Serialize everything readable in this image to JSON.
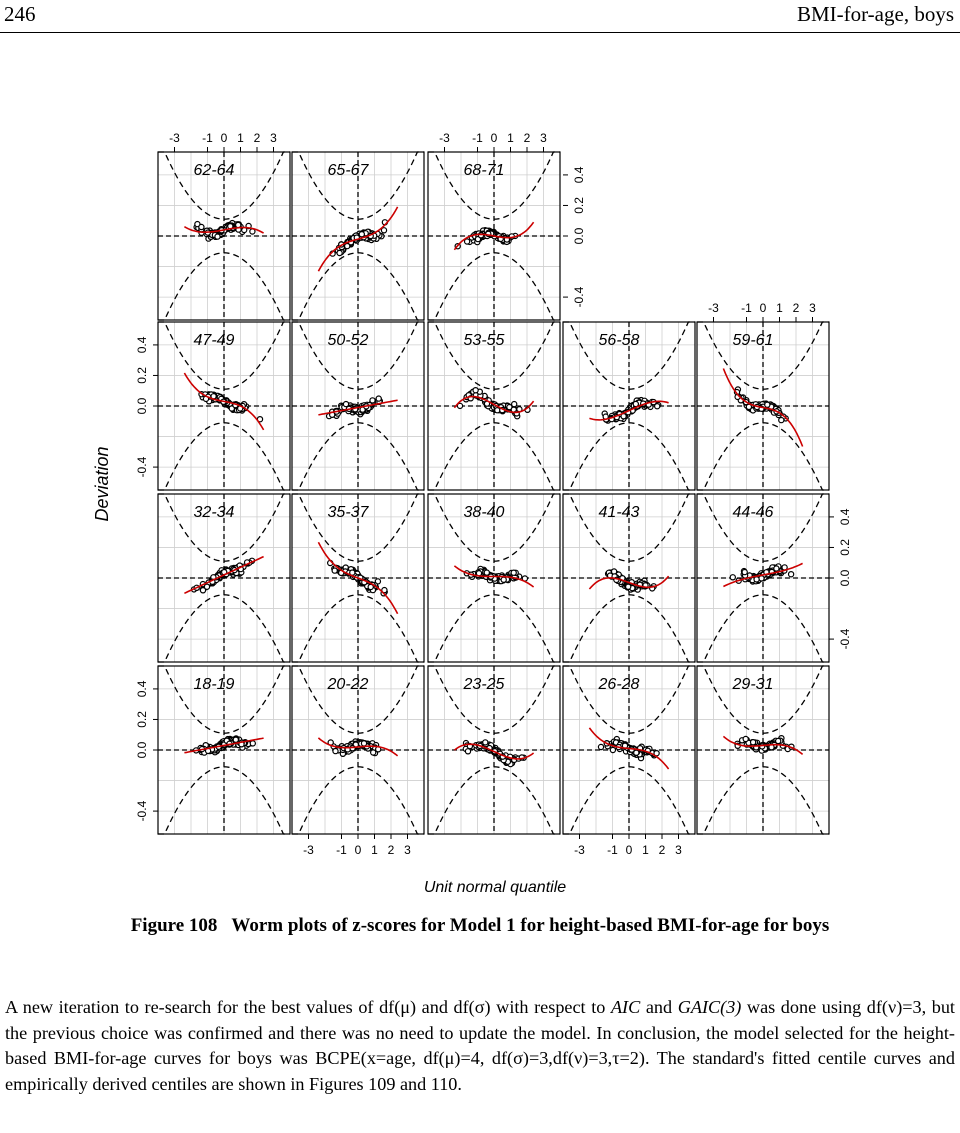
{
  "header": {
    "page_number": "246",
    "running_title": "BMI-for-age, boys"
  },
  "chart_data": {
    "type": "scatter",
    "ylabel": "Deviation",
    "xlabel": "Unit normal quantile",
    "xticks": [
      "-3",
      "-1",
      "0",
      "1",
      "2",
      "3"
    ],
    "yticks": [
      "-0.4",
      "0.0",
      "0.2",
      "0.4"
    ],
    "xlim": [
      -4,
      4
    ],
    "ylim": [
      -0.55,
      0.55
    ],
    "grid": true,
    "panels": [
      {
        "label": "62-64",
        "row": 0,
        "col": 0,
        "a": 0.04,
        "b": 0.02,
        "c": -0.005
      },
      {
        "label": "65-67",
        "row": 0,
        "col": 1,
        "a": -0.02,
        "b": 0.03,
        "c": 0.01
      },
      {
        "label": "68-71",
        "row": 0,
        "col": 2,
        "a": 0.0,
        "b": -0.02,
        "c": 0.01
      },
      {
        "label": "47-49",
        "row": 1,
        "col": 0,
        "a": 0.03,
        "b": -0.02,
        "c": -0.01
      },
      {
        "label": "50-52",
        "row": 1,
        "col": 1,
        "a": -0.01,
        "b": 0.02,
        "c": 0.0
      },
      {
        "label": "53-55",
        "row": 1,
        "col": 2,
        "a": 0.01,
        "b": -0.06,
        "c": 0.012
      },
      {
        "label": "56-58",
        "row": 1,
        "col": 3,
        "a": -0.03,
        "b": 0.05,
        "c": -0.005
      },
      {
        "label": "59-61",
        "row": 1,
        "col": 4,
        "a": -0.01,
        "b": -0.02,
        "c": -0.015
      },
      {
        "label": "32-34",
        "row": 2,
        "col": 0,
        "a": 0.02,
        "b": 0.05,
        "c": 0.0
      },
      {
        "label": "35-37",
        "row": 2,
        "col": 1,
        "a": 0.0,
        "b": -0.04,
        "c": -0.01
      },
      {
        "label": "38-40",
        "row": 2,
        "col": 2,
        "a": 0.01,
        "b": 0.0,
        "c": -0.005
      },
      {
        "label": "41-43",
        "row": 2,
        "col": 3,
        "a": -0.03,
        "b": -0.04,
        "c": 0.01
      },
      {
        "label": "44-46",
        "row": 2,
        "col": 4,
        "a": 0.02,
        "b": 0.02,
        "c": 0.002
      },
      {
        "label": "18-19",
        "row": 3,
        "col": 0,
        "a": 0.03,
        "b": 0.02,
        "c": 0.0
      },
      {
        "label": "20-22",
        "row": 3,
        "col": 1,
        "a": 0.02,
        "b": 0.01,
        "c": -0.006
      },
      {
        "label": "23-25",
        "row": 3,
        "col": 2,
        "a": -0.01,
        "b": -0.05,
        "c": 0.008
      },
      {
        "label": "26-28",
        "row": 3,
        "col": 3,
        "a": 0.01,
        "b": -0.01,
        "c": -0.008
      },
      {
        "label": "29-31",
        "row": 3,
        "col": 4,
        "a": 0.03,
        "b": 0.01,
        "c": -0.006
      }
    ]
  },
  "caption": {
    "number": "Figure 108",
    "text": "Worm plots of z-scores for Model 1 for height-based BMI-for-age for boys"
  },
  "body": {
    "p1_a": "A new iteration to re-search for the best values of df(μ) and df(σ) with respect to ",
    "p1_aic": "AIC",
    "p1_and": " and ",
    "p1_gaic": "GAIC(3)",
    "p1_b": " was done using df(ν)=3, but the previous choice was confirmed and there was no need to update the model. In conclusion, the model selected for the height-based BMI-for-age curves for boys was BCPE(x=age, df(μ)=4, df(σ)=3,df(ν)=3,τ=2). The standard's fitted centile curves and empirically derived centiles are shown in Figures 109 and 110."
  }
}
